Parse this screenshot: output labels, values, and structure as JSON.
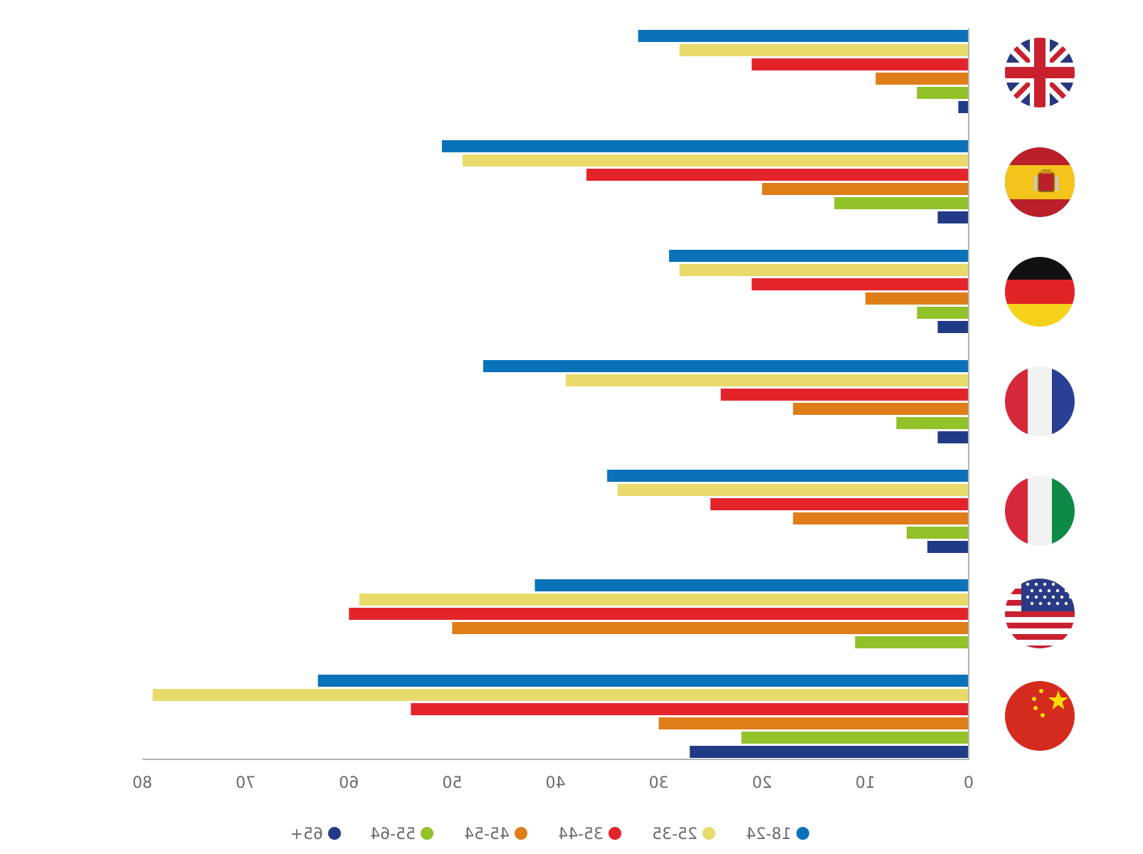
{
  "chart_data": {
    "type": "bar",
    "orientation": "horizontal",
    "mirrored": true,
    "categories": [
      "United Kingdom",
      "Spain",
      "Germany",
      "France",
      "Italy",
      "United States",
      "China"
    ],
    "flag_icons": [
      "uk-flag-icon",
      "spain-flag-icon",
      "germany-flag-icon",
      "france-flag-icon",
      "italy-flag-icon",
      "usa-flag-icon",
      "china-flag-icon"
    ],
    "series": [
      {
        "name": "18-24",
        "color": "#0a72b8",
        "values": [
          32,
          51,
          29,
          47,
          35,
          42,
          63
        ]
      },
      {
        "name": "25-35",
        "color": "#e8db6c",
        "values": [
          28,
          49,
          28,
          39,
          34,
          59,
          79
        ]
      },
      {
        "name": "35-44",
        "color": "#e3242b",
        "values": [
          21,
          37,
          21,
          24,
          25,
          60,
          54
        ]
      },
      {
        "name": "45-54",
        "color": "#df7d19",
        "values": [
          9,
          20,
          10,
          17,
          17,
          50,
          30
        ]
      },
      {
        "name": "55-64",
        "color": "#92c129",
        "values": [
          5,
          13,
          5,
          7,
          6,
          11,
          22
        ]
      },
      {
        "name": "65+",
        "color": "#213a85",
        "values": [
          1,
          3,
          3,
          3,
          4,
          0,
          27
        ]
      }
    ],
    "xlim": [
      0,
      80
    ],
    "x_ticks": [
      "0",
      "10",
      "20",
      "30",
      "40",
      "50",
      "60",
      "70",
      "80"
    ],
    "legend_position": "bottom",
    "grid": false
  }
}
